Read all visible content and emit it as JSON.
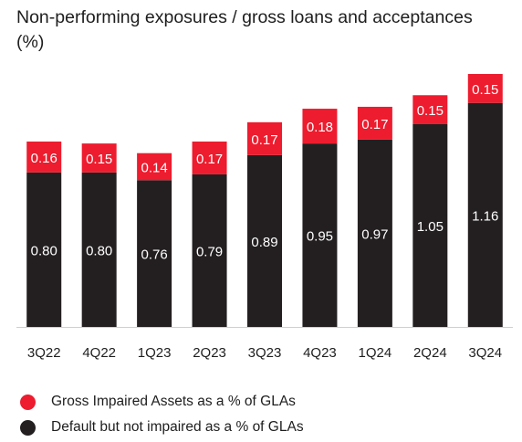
{
  "title": "Non-performing exposures / gross loans and acceptances (%)",
  "colors": {
    "gia": "#ed1c2e",
    "default": "#231f20",
    "axis": "#cfcfcf",
    "label_on_red": "#ffffff",
    "label_on_black": "#ffffff"
  },
  "chart_data": {
    "type": "bar",
    "stacked": true,
    "categories": [
      "3Q22",
      "4Q22",
      "1Q23",
      "2Q23",
      "3Q23",
      "4Q23",
      "1Q24",
      "2Q24",
      "3Q24"
    ],
    "series": [
      {
        "name": "Default but not impaired as a % of GLAs",
        "color": "#231f20",
        "values": [
          0.8,
          0.8,
          0.76,
          0.79,
          0.89,
          0.95,
          0.97,
          1.05,
          1.16
        ]
      },
      {
        "name": "Gross Impaired Assets as a % of GLAs",
        "color": "#ed1c2e",
        "values": [
          0.16,
          0.15,
          0.14,
          0.17,
          0.17,
          0.18,
          0.17,
          0.15,
          0.15
        ]
      }
    ],
    "ylim": [
      0,
      1.31
    ],
    "grid": false,
    "legend_position": "bottom-left"
  },
  "legend": [
    {
      "label": "Gross Impaired Assets as a % of GLAs",
      "color": "#ed1c2e"
    },
    {
      "label": "Default but not impaired as a % of GLAs",
      "color": "#231f20"
    }
  ]
}
